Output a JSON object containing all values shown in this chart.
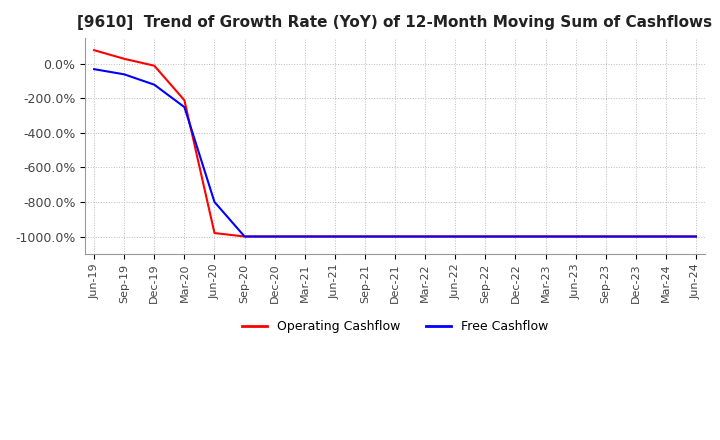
{
  "title": "[9610]  Trend of Growth Rate (YoY) of 12-Month Moving Sum of Cashflows",
  "title_fontsize": 11,
  "ylim": [
    -1100,
    150
  ],
  "yticks": [
    0,
    -200,
    -400,
    -600,
    -800,
    -1000
  ],
  "ytick_labels": [
    "0.0%",
    "-200.0%",
    "-400.0%",
    "-600.0%",
    "-800.0%",
    "-1000.0%"
  ],
  "background_color": "#ffffff",
  "plot_bg_color": "#ffffff",
  "grid_color": "#bbbbbb",
  "operating_color": "#ff0000",
  "free_color": "#0000ff",
  "legend_labels": [
    "Operating Cashflow",
    "Free Cashflow"
  ],
  "x_dates": [
    "Jun-19",
    "Sep-19",
    "Dec-19",
    "Mar-20",
    "Jun-20",
    "Sep-20",
    "Dec-20",
    "Mar-21",
    "Jun-21",
    "Sep-21",
    "Dec-21",
    "Mar-22",
    "Jun-22",
    "Sep-22",
    "Dec-22",
    "Mar-23",
    "Jun-23",
    "Sep-23",
    "Dec-23",
    "Mar-24",
    "Jun-24"
  ],
  "operating_cashflow": [
    80,
    30,
    -10,
    -210,
    -980,
    -1000,
    -1000,
    -1000,
    -1000,
    -1000,
    -1000,
    -1000,
    -1000,
    -1000,
    -1000,
    -1000,
    -1000,
    -1000,
    -1000,
    -1000,
    -1000
  ],
  "free_cashflow": [
    -30,
    -60,
    -120,
    -250,
    -800,
    -1000,
    -1000,
    -1000,
    -1000,
    -1000,
    -1000,
    -1000,
    -1000,
    -1000,
    -1000,
    -1000,
    -1000,
    -1000,
    -1000,
    -1000,
    -1000
  ]
}
